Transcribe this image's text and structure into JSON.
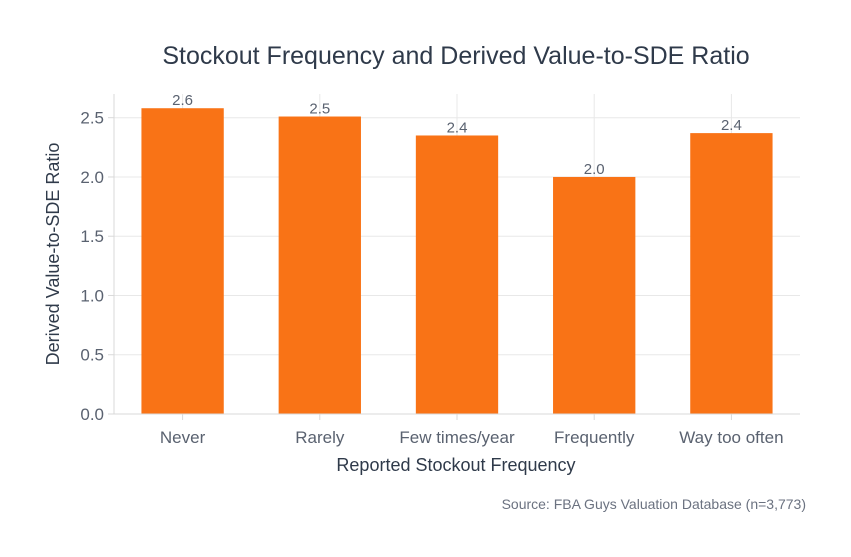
{
  "chart_data": {
    "type": "bar",
    "title": "Stockout Frequency and Derived Value-to-SDE Ratio",
    "xlabel": "Reported Stockout Frequency",
    "ylabel": "Derived Value-to-SDE Ratio",
    "categories": [
      "Never",
      "Rarely",
      "Few times/year",
      "Frequently",
      "Way too often"
    ],
    "values": [
      2.58,
      2.51,
      2.35,
      2.0,
      2.37
    ],
    "data_labels": [
      "2.6",
      "2.5",
      "2.4",
      "2.0",
      "2.4"
    ],
    "ylim": [
      0,
      2.7
    ],
    "yticks": [
      "0.0",
      "0.5",
      "1.0",
      "1.5",
      "2.0",
      "2.5"
    ],
    "grid": true,
    "bar_color": "#f97316",
    "source": "Source: FBA Guys Valuation Database (n=3,773)"
  }
}
